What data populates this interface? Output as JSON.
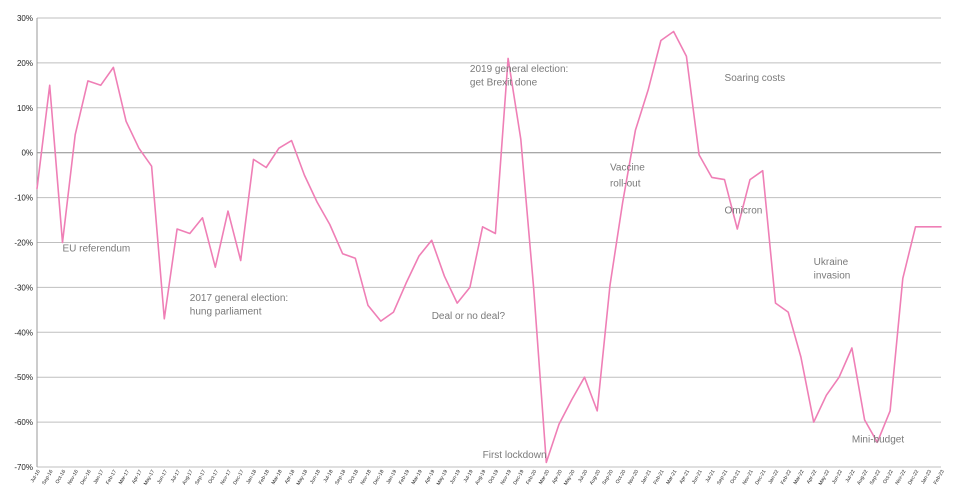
{
  "chart_data": {
    "type": "line",
    "title": "",
    "xlabel": "",
    "ylabel": "",
    "ylim": [
      -70,
      30
    ],
    "yticks": [
      30,
      20,
      10,
      0,
      -10,
      -20,
      -30,
      -40,
      -50,
      -60,
      -70
    ],
    "ytick_labels": [
      "30%",
      "20%",
      "10%",
      "0%",
      "-10%",
      "-20%",
      "-30%",
      "-40%",
      "-50%",
      "-60%",
      "-70%"
    ],
    "grid": true,
    "legend": "none",
    "line_color": "#ef7fb6",
    "categories": [
      "Jul-16",
      "Sep-16",
      "Oct-16",
      "Nov-16",
      "Dec-16",
      "Jan-17",
      "Feb-17",
      "Mar-17",
      "Apr-17",
      "May-17",
      "Jun-17",
      "Jul-17",
      "Aug-17",
      "Sep-17",
      "Oct-17",
      "Nov-17",
      "Dec-17",
      "Jan-18",
      "Feb-18",
      "Mar-18",
      "Apr-18",
      "May-18",
      "Jun-18",
      "Jul-18",
      "Sep-18",
      "Oct-18",
      "Nov-18",
      "Dec-18",
      "Jan-19",
      "Feb-19",
      "Mar-19",
      "Apr-19",
      "May-19",
      "Jun-19",
      "Jul-19",
      "Aug-19",
      "Oct-19",
      "Nov-19",
      "Dec-19",
      "Feb-20",
      "Mar-20",
      "Apr-20",
      "May-20",
      "Jul-20",
      "Aug-20",
      "Sep-20",
      "Oct-20",
      "Nov-20",
      "Jan-21",
      "Feb-21",
      "Mar-21",
      "Apr-21",
      "Jun-21",
      "Jul-21",
      "Sep-21",
      "Oct-21",
      "Nov-21",
      "Dec-21",
      "Jan-22",
      "Feb-22",
      "Mar-22",
      "Apr-22",
      "May-22",
      "Jun-22",
      "Jul-22",
      "Aug-22",
      "Sep-22",
      "Oct-22",
      "Nov-22",
      "Dec-22",
      "Jan-23",
      "Feb-23"
    ],
    "values": [
      -8,
      15,
      -20,
      4,
      16,
      15,
      19,
      7,
      1,
      -3,
      -37,
      -17,
      -18,
      -14.5,
      -25.5,
      -13,
      -24,
      -1.5,
      -3.3,
      1,
      2.7,
      -5,
      -11,
      -16,
      -22.5,
      -23.5,
      -34,
      -37.5,
      -35.5,
      -29,
      -23,
      -19.5,
      -27.5,
      -33.5,
      -30,
      -16.5,
      -18,
      21,
      3,
      -30,
      -69,
      -60.5,
      -55,
      -50,
      -57.5,
      -29.5,
      -11,
      5,
      14,
      25,
      27,
      21.5,
      -0.5,
      -5.5,
      -6,
      -17,
      -6,
      -4,
      -33.5,
      -35.5,
      -45.5,
      -60,
      -54,
      -50,
      -43.5,
      -59.5,
      -64.5,
      -57.5,
      -28,
      -16.5,
      -16.5,
      -16.5
    ],
    "annotations": [
      {
        "text": "EU referendum",
        "category": "Oct-16",
        "y": -22
      },
      {
        "text": "2017 general election:",
        "category": "Aug-17",
        "y": -33
      },
      {
        "text": "hung parliament",
        "category": "Aug-17",
        "y": -36
      },
      {
        "text": "2019 general election:",
        "category": "Jul-19",
        "y": 18
      },
      {
        "text": "get Brexit done",
        "category": "Jul-19",
        "y": 15
      },
      {
        "text": "Deal or no deal?",
        "category": "Apr-19",
        "y": -37
      },
      {
        "text": "First lockdown",
        "category": "Aug-19",
        "y": -68
      },
      {
        "text": "Vaccine",
        "category": "Sep-20",
        "y": -4
      },
      {
        "text": "roll-out",
        "category": "Sep-20",
        "y": -7.5
      },
      {
        "text": "Soaring costs",
        "category": "Sep-21",
        "y": 16
      },
      {
        "text": "Omicron",
        "category": "Sep-21",
        "y": -13.5
      },
      {
        "text": "Ukraine",
        "category": "Apr-22",
        "y": -25
      },
      {
        "text": "invasion",
        "category": "Apr-22",
        "y": -28
      },
      {
        "text": "Mini-budget",
        "category": "Jul-22",
        "y": -64.5
      }
    ]
  }
}
